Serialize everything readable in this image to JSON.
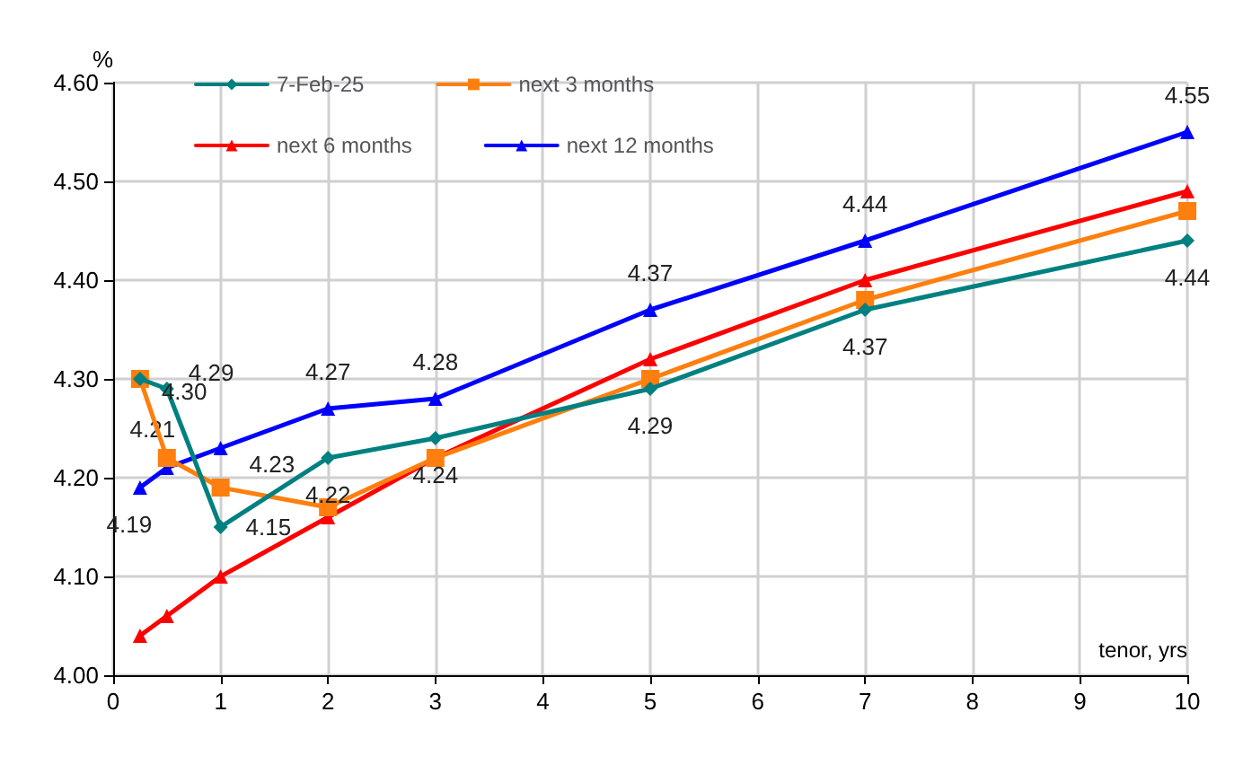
{
  "chart_data": {
    "type": "line",
    "ylabel": "%",
    "xlabel": "tenor, yrs",
    "x": [
      0.25,
      0.5,
      1,
      2,
      3,
      5,
      7,
      10
    ],
    "series": [
      {
        "name": "7-Feb-25",
        "color": "#008080",
        "marker": "diamond",
        "values": [
          4.3,
          4.29,
          4.15,
          4.22,
          4.24,
          4.29,
          4.37,
          4.44
        ],
        "value_labels": [
          "4.30",
          "4.29",
          "4.15",
          "4.22",
          "4.24",
          "4.29",
          "4.37",
          "4.44"
        ]
      },
      {
        "name": "next 3 months",
        "color": "#ff7f0e",
        "marker": "square",
        "values": [
          4.3,
          4.22,
          4.19,
          4.17,
          4.22,
          4.3,
          4.38,
          4.47
        ]
      },
      {
        "name": "next 6 months",
        "color": "#ff0000",
        "marker": "triangle",
        "values": [
          4.04,
          4.06,
          4.1,
          4.16,
          4.22,
          4.32,
          4.4,
          4.49
        ]
      },
      {
        "name": "next 12 months",
        "color": "#0000ff",
        "marker": "triangle",
        "values": [
          4.19,
          4.21,
          4.23,
          4.27,
          4.28,
          4.37,
          4.44,
          4.55
        ],
        "value_labels": [
          "4.19",
          "4.21",
          "4.23",
          "4.27",
          "4.28",
          "4.37",
          "4.44",
          "4.55"
        ]
      }
    ],
    "xlim": [
      0,
      10
    ],
    "xticks": [
      0,
      1,
      2,
      3,
      4,
      5,
      6,
      7,
      8,
      9,
      10
    ],
    "ylim": [
      4.0,
      4.6
    ],
    "yticks": [
      {
        "value": 4.0,
        "label": "4.00"
      },
      {
        "value": 4.1,
        "label": "4.10"
      },
      {
        "value": 4.2,
        "label": "4.20"
      },
      {
        "value": 4.3,
        "label": "4.30"
      },
      {
        "value": 4.4,
        "label": "4.40"
      },
      {
        "value": 4.5,
        "label": "4.50"
      },
      {
        "value": 4.6,
        "label": "4.60"
      }
    ],
    "grid": true,
    "legend": "top left",
    "line_style": "solid"
  }
}
